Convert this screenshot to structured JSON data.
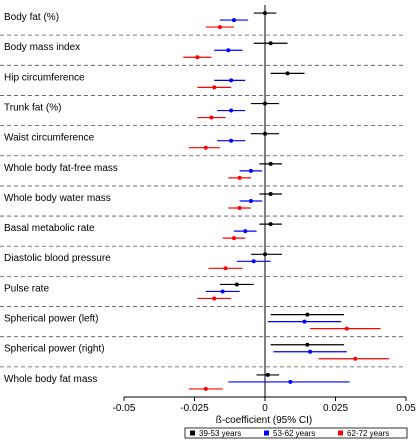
{
  "chart_data": {
    "type": "forest",
    "xlabel": "ß-coefficient (95% CI)",
    "xlim": [
      -0.05,
      0.05
    ],
    "xticks": [
      -0.05,
      -0.025,
      0,
      0.025,
      0.05
    ],
    "xtick_labels": [
      "-0.05",
      "-0.025",
      "0",
      "0.025",
      "0.05"
    ],
    "legend_position": "bottom-right",
    "reference_line": 0,
    "series": [
      {
        "name": "39-53 years",
        "color": "#000000"
      },
      {
        "name": "53-62 years",
        "color": "#0000ff"
      },
      {
        "name": "62-72 years",
        "color": "#ff0000"
      }
    ],
    "rows": [
      {
        "label": "Body fat (%)",
        "estimates": [
          [
            0.0,
            -0.004,
            0.004
          ],
          [
            -0.011,
            -0.016,
            -0.006
          ],
          [
            -0.016,
            -0.021,
            -0.011
          ]
        ]
      },
      {
        "label": "Body mass index",
        "estimates": [
          [
            0.002,
            -0.004,
            0.008
          ],
          [
            -0.013,
            -0.018,
            -0.008
          ],
          [
            -0.024,
            -0.029,
            -0.019
          ]
        ]
      },
      {
        "label": "Hip circumference",
        "estimates": [
          [
            0.008,
            0.002,
            0.014
          ],
          [
            -0.012,
            -0.018,
            -0.007
          ],
          [
            -0.018,
            -0.024,
            -0.012
          ]
        ]
      },
      {
        "label": "Trunk fat (%)",
        "estimates": [
          [
            0.0,
            -0.005,
            0.005
          ],
          [
            -0.012,
            -0.017,
            -0.007
          ],
          [
            -0.019,
            -0.024,
            -0.014
          ]
        ]
      },
      {
        "label": "Waist circumference",
        "estimates": [
          [
            0.0,
            -0.005,
            0.005
          ],
          [
            -0.012,
            -0.017,
            -0.007
          ],
          [
            -0.021,
            -0.027,
            -0.016
          ]
        ]
      },
      {
        "label": "Whole body fat-free mass",
        "estimates": [
          [
            0.002,
            -0.002,
            0.006
          ],
          [
            -0.005,
            -0.009,
            -0.001
          ],
          [
            -0.009,
            -0.013,
            -0.005
          ]
        ]
      },
      {
        "label": "Whole body water mass",
        "estimates": [
          [
            0.002,
            -0.002,
            0.006
          ],
          [
            -0.005,
            -0.009,
            -0.001
          ],
          [
            -0.009,
            -0.013,
            -0.005
          ]
        ]
      },
      {
        "label": "Basal metabolic rate",
        "estimates": [
          [
            0.002,
            -0.002,
            0.006
          ],
          [
            -0.007,
            -0.011,
            -0.003
          ],
          [
            -0.011,
            -0.015,
            -0.007
          ]
        ]
      },
      {
        "label": "Diastolic blood pressure",
        "estimates": [
          [
            0.0,
            -0.005,
            0.006
          ],
          [
            -0.004,
            -0.01,
            0.002
          ],
          [
            -0.014,
            -0.02,
            -0.008
          ]
        ]
      },
      {
        "label": "Pulse rate",
        "estimates": [
          [
            -0.01,
            -0.016,
            -0.004
          ],
          [
            -0.015,
            -0.021,
            -0.009
          ],
          [
            -0.018,
            -0.024,
            -0.012
          ]
        ]
      },
      {
        "label": "Spherical power (left)",
        "estimates": [
          [
            0.015,
            0.002,
            0.028
          ],
          [
            0.014,
            0.001,
            0.027
          ],
          [
            0.029,
            0.016,
            0.041
          ]
        ]
      },
      {
        "label": "Spherical power (right)",
        "estimates": [
          [
            0.015,
            0.002,
            0.028
          ],
          [
            0.016,
            0.003,
            0.029
          ],
          [
            0.032,
            0.019,
            0.044
          ]
        ]
      },
      {
        "label": "Whole body fat mass",
        "estimates": [
          [
            0.001,
            -0.003,
            0.005
          ],
          [
            0.009,
            -0.013,
            0.03
          ],
          [
            -0.021,
            -0.027,
            -0.015
          ]
        ]
      }
    ]
  }
}
